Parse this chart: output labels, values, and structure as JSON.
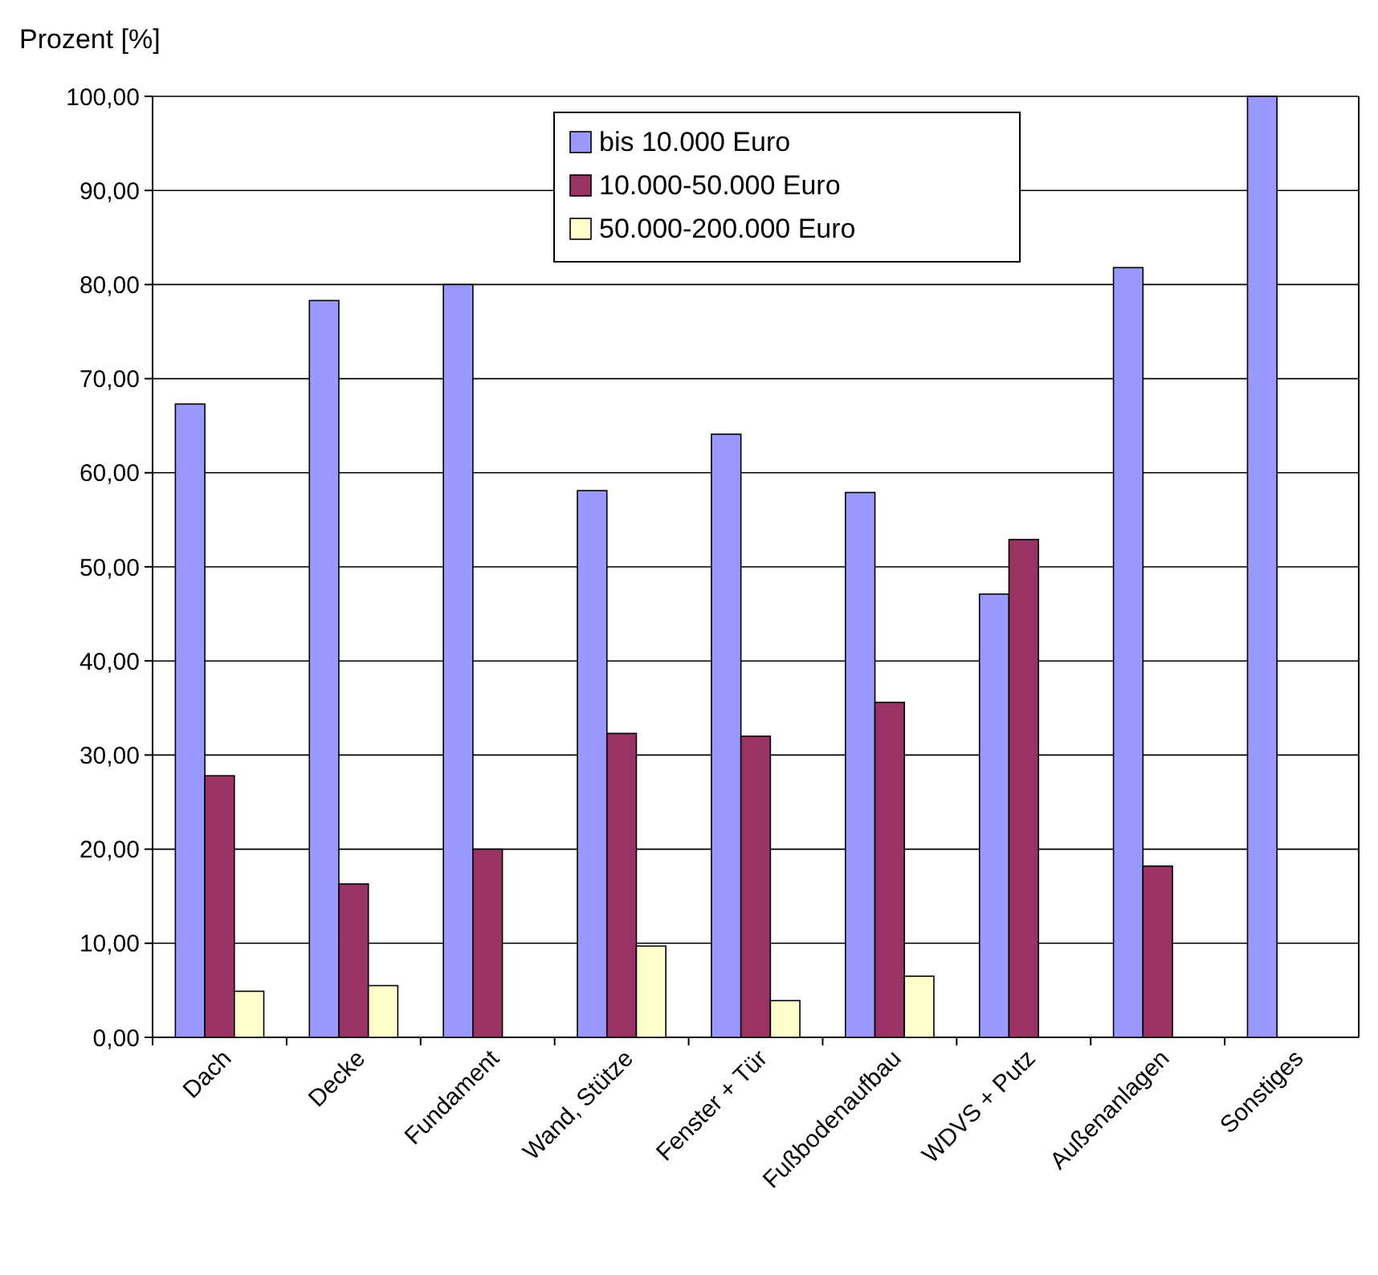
{
  "chart_data": {
    "type": "bar",
    "ylabel": "Prozent [%]",
    "categories": [
      "Dach",
      "Decke",
      "Fundament",
      "Wand, Stütze",
      "Fenster + Tür",
      "Fußbodenaufbau",
      "WDVS + Putz",
      "Außenanlagen",
      "Sonstiges"
    ],
    "series": [
      {
        "name": "bis 10.000 Euro",
        "color": "#9999ff",
        "values": [
          67.3,
          78.3,
          80.0,
          58.1,
          64.1,
          57.9,
          47.1,
          81.8,
          100.0
        ]
      },
      {
        "name": "10.000-50.000 Euro",
        "color": "#993366",
        "values": [
          27.8,
          16.3,
          20.0,
          32.3,
          32.0,
          35.6,
          52.9,
          18.2,
          null
        ]
      },
      {
        "name": "50.000-200.000 Euro",
        "color": "#ffffcc",
        "values": [
          4.9,
          5.5,
          null,
          9.7,
          3.9,
          6.5,
          null,
          null,
          null
        ]
      }
    ],
    "ylim": [
      0,
      100
    ],
    "yticks": [
      {
        "value": 0,
        "label": "0,00"
      },
      {
        "value": 10,
        "label": "10,00"
      },
      {
        "value": 20,
        "label": "20,00"
      },
      {
        "value": 30,
        "label": "30,00"
      },
      {
        "value": 40,
        "label": "40,00"
      },
      {
        "value": 50,
        "label": "50,00"
      },
      {
        "value": 60,
        "label": "60,00"
      },
      {
        "value": 70,
        "label": "70,00"
      },
      {
        "value": 80,
        "label": "80,00"
      },
      {
        "value": 90,
        "label": "90,00"
      },
      {
        "value": 100,
        "label": "100,00"
      }
    ],
    "grid": "y",
    "legend": "top"
  }
}
